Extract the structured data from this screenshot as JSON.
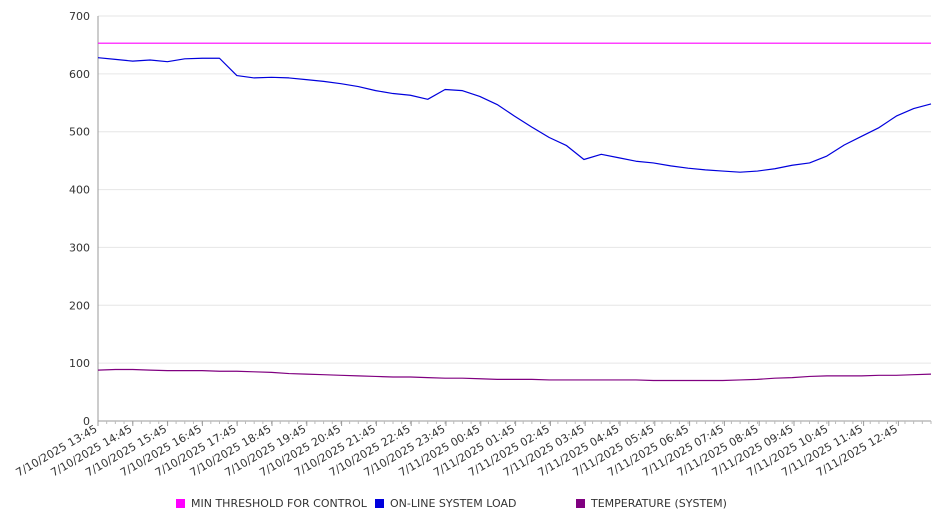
{
  "chart_data": {
    "type": "line",
    "title": "",
    "xlabel": "",
    "ylabel": "",
    "ylim": [
      0,
      700
    ],
    "yticks": [
      "0",
      "100",
      "200",
      "300",
      "400",
      "500",
      "600",
      "700"
    ],
    "grid": true,
    "legend_position": "bottom",
    "x_tick_labels": [
      "7/10/2025 13:45",
      "7/10/2025 14:45",
      "7/10/2025 15:45",
      "7/10/2025 16:45",
      "7/10/2025 17:45",
      "7/10/2025 18:45",
      "7/10/2025 19:45",
      "7/10/2025 20:45",
      "7/10/2025 21:45",
      "7/10/2025 22:45",
      "7/10/2025 23:45",
      "7/11/2025 00:45",
      "7/11/2025 01:45",
      "7/11/2025 02:45",
      "7/11/2025 03:45",
      "7/11/2025 04:45",
      "7/11/2025 05:45",
      "7/11/2025 06:45",
      "7/11/2025 07:45",
      "7/11/2025 08:45",
      "7/11/2025 09:45",
      "7/11/2025 10:45",
      "7/11/2025 11:45",
      "7/11/2025 12:45"
    ],
    "x": [
      "7/10/2025 13:45",
      "7/10/2025 14:15",
      "7/10/2025 14:45",
      "7/10/2025 15:15",
      "7/10/2025 15:45",
      "7/10/2025 16:15",
      "7/10/2025 16:45",
      "7/10/2025 17:15",
      "7/10/2025 17:45",
      "7/10/2025 18:15",
      "7/10/2025 18:45",
      "7/10/2025 19:15",
      "7/10/2025 19:45",
      "7/10/2025 20:15",
      "7/10/2025 20:45",
      "7/10/2025 21:15",
      "7/10/2025 21:45",
      "7/10/2025 22:15",
      "7/10/2025 22:45",
      "7/10/2025 23:15",
      "7/10/2025 23:45",
      "7/11/2025 00:15",
      "7/11/2025 00:45",
      "7/11/2025 01:15",
      "7/11/2025 01:45",
      "7/11/2025 02:15",
      "7/11/2025 02:45",
      "7/11/2025 03:15",
      "7/11/2025 03:45",
      "7/11/2025 04:15",
      "7/11/2025 04:45",
      "7/11/2025 05:15",
      "7/11/2025 05:45",
      "7/11/2025 06:15",
      "7/11/2025 06:45",
      "7/11/2025 07:15",
      "7/11/2025 07:45",
      "7/11/2025 08:15",
      "7/11/2025 08:45",
      "7/11/2025 09:15",
      "7/11/2025 09:45",
      "7/11/2025 10:15",
      "7/11/2025 10:45",
      "7/11/2025 11:15",
      "7/11/2025 11:45",
      "7/11/2025 12:15",
      "7/11/2025 12:45",
      "7/11/2025 13:15",
      "7/11/2025 13:45"
    ],
    "series": [
      {
        "name": "MIN THRESHOLD FOR CONTROL",
        "color": "#ff00ff",
        "values": [
          653,
          653,
          653,
          653,
          653,
          653,
          653,
          653,
          653,
          653,
          653,
          653,
          653,
          653,
          653,
          653,
          653,
          653,
          653,
          653,
          653,
          653,
          653,
          653,
          653,
          653,
          653,
          653,
          653,
          653,
          653,
          653,
          653,
          653,
          653,
          653,
          653,
          653,
          653,
          653,
          653,
          653,
          653,
          653,
          653,
          653,
          653,
          653,
          653
        ]
      },
      {
        "name": "ON-LINE SYSTEM LOAD",
        "color": "#0000dd",
        "values": [
          628,
          625,
          622,
          624,
          621,
          626,
          627,
          627,
          597,
          593,
          594,
          593,
          590,
          587,
          583,
          578,
          571,
          566,
          563,
          556,
          573,
          571,
          561,
          547,
          527,
          508,
          490,
          476,
          452,
          461,
          455,
          449,
          446,
          441,
          437,
          434,
          432,
          430,
          432,
          436,
          442,
          446,
          458,
          477,
          492,
          507,
          527,
          540,
          548
        ]
      }
    ]
  },
  "temperature_series": {
    "name": "TEMPERATURE (SYSTEM)",
    "color": "#800080",
    "values": [
      88,
      89,
      89,
      88,
      87,
      87,
      87,
      86,
      86,
      85,
      84,
      82,
      81,
      80,
      79,
      78,
      77,
      76,
      76,
      75,
      74,
      74,
      73,
      72,
      72,
      72,
      71,
      71,
      71,
      71,
      71,
      71,
      70,
      70,
      70,
      70,
      70,
      71,
      72,
      74,
      75,
      77,
      78,
      78,
      78,
      79,
      79,
      80,
      81
    ]
  },
  "legend": {
    "items": [
      {
        "label": "MIN THRESHOLD FOR CONTROL",
        "color": "#ff00ff"
      },
      {
        "label": "ON-LINE SYSTEM LOAD",
        "color": "#0000dd"
      },
      {
        "label": "TEMPERATURE (SYSTEM)",
        "color": "#800080"
      }
    ]
  },
  "colors": {
    "grid": "#e6e6e6",
    "axis": "#999999",
    "text": "#333333"
  }
}
